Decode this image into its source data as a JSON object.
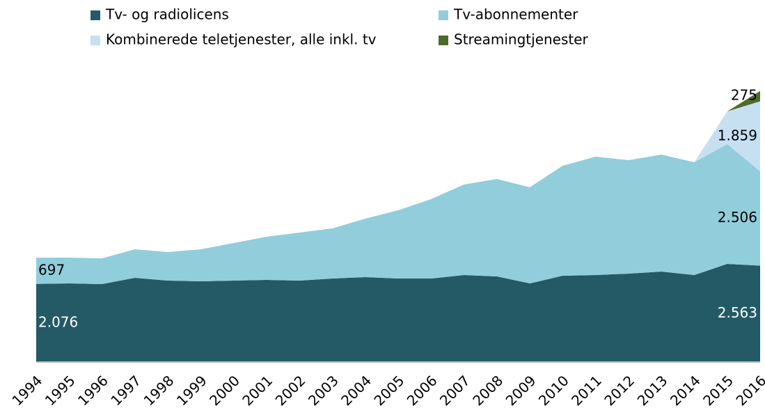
{
  "chart_data": {
    "type": "stacked_area",
    "categories": [
      "1994",
      "1995",
      "1996",
      "1997",
      "1998",
      "1999",
      "2000",
      "2001",
      "2002",
      "2003",
      "2004",
      "2005",
      "2006",
      "2007",
      "2008",
      "2009",
      "2010",
      "2011",
      "2012",
      "2013",
      "2014",
      "2015",
      "2016"
    ],
    "series": [
      {
        "name": "Tv- og radiolicens",
        "color": "#245a66",
        "values": [
          2076,
          2090,
          2072,
          2239,
          2165,
          2146,
          2165,
          2183,
          2165,
          2220,
          2257,
          2220,
          2220,
          2313,
          2276,
          2090,
          2294,
          2313,
          2350,
          2405,
          2313,
          2609,
          2563
        ],
        "value_labels": [
          "2.076",
          null,
          null,
          null,
          null,
          null,
          null,
          null,
          null,
          null,
          null,
          null,
          null,
          null,
          null,
          null,
          null,
          null,
          null,
          null,
          null,
          null,
          "2.563"
        ]
      },
      {
        "name": "Tv-abonnementer",
        "color": "#92cddb",
        "values": [
          697,
          685,
          685,
          759,
          759,
          851,
          999,
          1147,
          1277,
          1332,
          1554,
          1813,
          2109,
          2405,
          2590,
          2553,
          2923,
          3145,
          3016,
          3108,
          2997,
          3182,
          2506
        ],
        "value_labels": [
          "697",
          null,
          null,
          null,
          null,
          null,
          null,
          null,
          null,
          null,
          null,
          null,
          null,
          null,
          null,
          null,
          null,
          null,
          null,
          null,
          null,
          null,
          "2.506"
        ]
      },
      {
        "name": "Kombinerede teletjenester, alle inkl. tv",
        "color": "#c6e0f2",
        "values": [
          0,
          0,
          0,
          0,
          0,
          0,
          0,
          0,
          0,
          0,
          0,
          0,
          0,
          0,
          0,
          0,
          0,
          0,
          0,
          0,
          0,
          870,
          1859
        ],
        "value_labels": [
          null,
          null,
          null,
          null,
          null,
          null,
          null,
          null,
          null,
          null,
          null,
          null,
          null,
          null,
          null,
          null,
          null,
          null,
          null,
          null,
          null,
          null,
          "1.859"
        ]
      },
      {
        "name": "Streamingtjenester",
        "color": "#4e6b2b",
        "values": [
          0,
          0,
          0,
          0,
          0,
          0,
          0,
          0,
          0,
          0,
          0,
          0,
          0,
          0,
          0,
          0,
          0,
          0,
          0,
          0,
          0,
          0,
          275
        ],
        "value_labels": [
          null,
          null,
          null,
          null,
          null,
          null,
          null,
          null,
          null,
          null,
          null,
          null,
          null,
          null,
          null,
          null,
          null,
          null,
          null,
          null,
          null,
          null,
          "275"
        ]
      }
    ],
    "ylim": [
      0,
      7400
    ]
  }
}
